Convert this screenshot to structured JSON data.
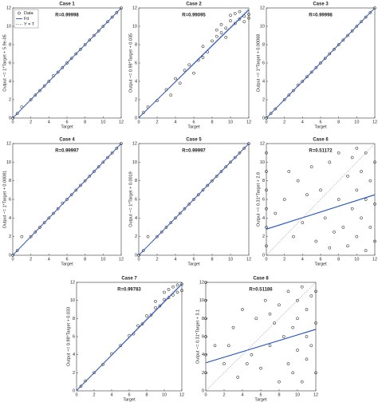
{
  "chart_data": [
    {
      "type": "scatter",
      "title": "Case 1",
      "subtitle": "R=0.99998",
      "xlabel": "Target",
      "ylabel": "Output ~= 1*Target + 5.9e-05",
      "xlim": [
        0,
        12
      ],
      "ylim": [
        0,
        12
      ],
      "xticks": [
        0,
        2,
        4,
        6,
        8,
        10,
        12
      ],
      "yticks": [
        0,
        2,
        4,
        6,
        8,
        10,
        12
      ],
      "legend": "upper left",
      "series": [
        {
          "name": "Data",
          "color": "#000000",
          "style": "markers",
          "x": [
            0,
            0.5,
            1,
            2,
            2.5,
            3,
            3.5,
            4,
            4.5,
            5,
            5.5,
            6,
            6.5,
            7,
            7.5,
            8,
            8.5,
            9,
            9.5,
            10,
            10.5,
            11,
            11.5,
            12
          ],
          "values": [
            0,
            0.5,
            1.2,
            2,
            2.5,
            3,
            3.5,
            4,
            4.6,
            5,
            5.5,
            6,
            6.5,
            7,
            7.5,
            8,
            8.5,
            9,
            9.5,
            10,
            10.5,
            11,
            11.5,
            12
          ]
        },
        {
          "name": "Fit",
          "color": "#1f4fbf",
          "style": "solid",
          "x": [
            0,
            12
          ],
          "values": [
            0,
            12
          ]
        },
        {
          "name": "Y = T",
          "color": "#999999",
          "style": "dotted",
          "x": [
            0,
            12
          ],
          "values": [
            0,
            12
          ]
        }
      ]
    },
    {
      "type": "scatter",
      "title": "Case 2",
      "subtitle": "R=0.99095",
      "xlabel": "Target",
      "ylabel": "Output ~= 0.98*Target + 0.035",
      "xlim": [
        0,
        12
      ],
      "ylim": [
        0,
        12
      ],
      "xticks": [
        0,
        2,
        4,
        6,
        8,
        10,
        12
      ],
      "yticks": [
        0,
        2,
        4,
        6,
        8,
        10,
        12
      ],
      "series": [
        {
          "color": "#000000",
          "style": "markers",
          "x": [
            0.5,
            1,
            2,
            3,
            3.5,
            4,
            4.5,
            5,
            5.5,
            6,
            6.5,
            7,
            7,
            7.5,
            8,
            8.5,
            9,
            9,
            9.5,
            10,
            10,
            10.5,
            10.5,
            11,
            11,
            11.5,
            11.5,
            12,
            12,
            9.5,
            8.5
          ],
          "values": [
            0.6,
            1.2,
            1.9,
            3.1,
            2.5,
            4.3,
            3.8,
            5.2,
            5.8,
            4.9,
            6.3,
            6.6,
            7.8,
            7.2,
            8.4,
            8.9,
            9.3,
            10.2,
            9.8,
            10.6,
            11.2,
            10.3,
            11.4,
            10.8,
            11.6,
            11.1,
            10.5,
            11.3,
            10.9,
            8.8,
            9.6
          ]
        },
        {
          "color": "#1f4fbf",
          "style": "solid",
          "x": [
            0,
            12
          ],
          "values": [
            0.035,
            11.8
          ]
        },
        {
          "color": "#999999",
          "style": "dotted",
          "x": [
            0,
            12
          ],
          "values": [
            0,
            12
          ]
        }
      ]
    },
    {
      "type": "scatter",
      "title": "Case 3",
      "subtitle": "R=0.99998",
      "xlabel": "Target",
      "ylabel": "Output ~= 1*Target + 0.00068",
      "xlim": [
        0,
        12
      ],
      "ylim": [
        0,
        12
      ],
      "xticks": [
        0,
        2,
        4,
        6,
        8,
        10,
        12
      ],
      "yticks": [
        0,
        2,
        4,
        6,
        8,
        10,
        12
      ],
      "series": [
        {
          "color": "#000000",
          "style": "markers",
          "x": [
            0,
            0.5,
            1,
            2,
            2.5,
            3,
            3.5,
            4,
            4.5,
            5,
            5.5,
            6,
            6.5,
            7,
            7.5,
            8,
            8.5,
            9,
            9.5,
            10,
            10.5,
            11,
            11.5,
            12
          ],
          "values": [
            0,
            0.5,
            1,
            2,
            2.5,
            3,
            3.6,
            4,
            4.5,
            5,
            5.5,
            6,
            6.5,
            7,
            7.5,
            8,
            8.5,
            9,
            9.5,
            10,
            10.5,
            11,
            11.5,
            12
          ]
        },
        {
          "color": "#1f4fbf",
          "style": "solid",
          "x": [
            0,
            12
          ],
          "values": [
            0,
            12
          ]
        },
        {
          "color": "#999999",
          "style": "dotted",
          "x": [
            0,
            12
          ],
          "values": [
            0,
            12
          ]
        }
      ]
    },
    {
      "type": "scatter",
      "title": "Case 4",
      "subtitle": "R=0.99997",
      "xlabel": "Target",
      "ylabel": "Output ~= 1*Target + 0.00081",
      "xlim": [
        0,
        12
      ],
      "ylim": [
        0,
        12
      ],
      "xticks": [
        0,
        2,
        4,
        6,
        8,
        10,
        12
      ],
      "yticks": [
        0,
        2,
        4,
        6,
        8,
        10,
        12
      ],
      "series": [
        {
          "color": "#000000",
          "style": "markers",
          "x": [
            0,
            0.5,
            1,
            2,
            2.5,
            3,
            3.5,
            4,
            4.5,
            5,
            5.5,
            6,
            6.5,
            7,
            7.5,
            8,
            8.5,
            9,
            9.5,
            10,
            10.5,
            11,
            11.5,
            12
          ],
          "values": [
            0,
            0.5,
            2,
            2,
            2.5,
            3,
            3.5,
            4,
            4.5,
            5,
            5.6,
            6,
            6.5,
            7,
            7.5,
            8,
            8.5,
            9,
            9.5,
            10,
            10.5,
            11,
            11.5,
            12
          ]
        },
        {
          "color": "#1f4fbf",
          "style": "solid",
          "x": [
            0,
            12
          ],
          "values": [
            0,
            12
          ]
        },
        {
          "color": "#999999",
          "style": "dotted",
          "x": [
            0,
            12
          ],
          "values": [
            0,
            12
          ]
        }
      ]
    },
    {
      "type": "scatter",
      "title": "Case 5",
      "subtitle": "R=0.99997",
      "xlabel": "Target",
      "ylabel": "Output ~= 1*Target + 0.0019",
      "xlim": [
        0,
        12
      ],
      "ylim": [
        0,
        12
      ],
      "xticks": [
        0,
        2,
        4,
        6,
        8,
        10,
        12
      ],
      "yticks": [
        0,
        2,
        4,
        6,
        8,
        10,
        12
      ],
      "series": [
        {
          "color": "#000000",
          "style": "markers",
          "x": [
            0,
            0.5,
            1,
            2,
            2.5,
            3,
            3.5,
            4,
            4.5,
            5,
            5.5,
            6,
            6.5,
            7,
            7.5,
            8,
            8.5,
            9,
            9.5,
            10,
            10.5,
            11,
            11.5,
            12
          ],
          "values": [
            0,
            0.5,
            2,
            2,
            2.5,
            3,
            3.5,
            4,
            4.5,
            5,
            5.5,
            6,
            6.5,
            7,
            7.5,
            8,
            8.5,
            9,
            9.5,
            10,
            10.5,
            11,
            11.5,
            12
          ]
        },
        {
          "color": "#1f4fbf",
          "style": "solid",
          "x": [
            0,
            12
          ],
          "values": [
            0,
            12
          ]
        },
        {
          "color": "#999999",
          "style": "dotted",
          "x": [
            0,
            12
          ],
          "values": [
            0,
            12
          ]
        }
      ]
    },
    {
      "type": "scatter",
      "title": "Case 6",
      "subtitle": "R=0.51172",
      "xlabel": "Target",
      "ylabel": "Output ~= 0.31*Target + 2.8",
      "xlim": [
        0,
        12
      ],
      "ylim": [
        0,
        12
      ],
      "xticks": [
        0,
        2,
        4,
        6,
        8,
        10,
        12
      ],
      "yticks": [
        0,
        2,
        4,
        6,
        8,
        10,
        12
      ],
      "series": [
        {
          "color": "#000000",
          "style": "markers",
          "x": [
            0,
            0,
            0,
            0,
            0,
            0,
            1,
            2,
            3,
            3.5,
            4,
            5,
            5.5,
            6,
            6.5,
            7,
            7.5,
            8,
            8,
            8.5,
            9,
            9,
            9.5,
            9.5,
            10,
            10,
            10,
            10.5,
            10.5,
            11,
            11,
            11,
            11.5,
            11.5,
            12,
            12,
            12,
            4.5,
            2.5,
            7
          ],
          "values": [
            1,
            3,
            5,
            7,
            9,
            11,
            4.5,
            6,
            2,
            8,
            3.5,
            9.5,
            1.5,
            7,
            4,
            10,
            2.5,
            6,
            11,
            3,
            8.5,
            1,
            5,
            10.5,
            2,
            7,
            11.5,
            4,
            9,
            0.5,
            6,
            11,
            3,
            8,
            1.5,
            10,
            5.5,
            6.5,
            9,
            0.8
          ]
        },
        {
          "color": "#1f4fbf",
          "style": "solid",
          "x": [
            0,
            12
          ],
          "values": [
            2.8,
            6.5
          ]
        },
        {
          "color": "#999999",
          "style": "dotted",
          "x": [
            0,
            12
          ],
          "values": [
            0,
            12
          ]
        }
      ]
    },
    {
      "type": "scatter",
      "title": "Case 7",
      "subtitle": "R=0.99783",
      "xlabel": "Target",
      "ylabel": "Output ~= 0.98*Target + 0.033",
      "xlim": [
        0,
        12
      ],
      "ylim": [
        0,
        12
      ],
      "xticks": [
        0,
        2,
        4,
        6,
        8,
        10,
        12
      ],
      "yticks": [
        0,
        2,
        4,
        6,
        8,
        10,
        12
      ],
      "series": [
        {
          "color": "#000000",
          "style": "markers",
          "x": [
            0.5,
            1,
            2,
            3,
            4,
            5,
            6,
            6.5,
            7,
            7.5,
            8,
            8.5,
            9,
            9,
            9.5,
            10,
            10,
            10.5,
            10.5,
            11,
            11,
            11.5,
            11.5,
            12,
            12
          ],
          "values": [
            0.5,
            1.1,
            2,
            2.9,
            4.1,
            5,
            6.1,
            6.3,
            7.2,
            7.4,
            8.3,
            8.4,
            9.2,
            9.9,
            9.4,
            10.1,
            10.9,
            10.3,
            11.2,
            10.6,
            11.5,
            10.9,
            11.7,
            11.1,
            11.8
          ]
        },
        {
          "color": "#1f4fbf",
          "style": "solid",
          "x": [
            0,
            12
          ],
          "values": [
            0.033,
            11.8
          ]
        },
        {
          "color": "#999999",
          "style": "dotted",
          "x": [
            0,
            12
          ],
          "values": [
            0,
            12
          ]
        }
      ]
    },
    {
      "type": "scatter",
      "title": "Case 8",
      "subtitle": "R=0.51186",
      "xlabel": "Target",
      "ylabel": "Output ~= 0.31*Target + 3.1",
      "xlim": [
        0,
        12
      ],
      "ylim": [
        0,
        12
      ],
      "xticks": [
        0,
        2,
        4,
        6,
        8,
        10,
        12
      ],
      "yticks": [
        0,
        2,
        4,
        6,
        8,
        10,
        12
      ],
      "series": [
        {
          "color": "#000000",
          "style": "markers",
          "x": [
            0,
            0,
            0,
            0,
            0,
            0,
            1,
            2,
            3,
            3.5,
            4,
            5,
            5.5,
            6,
            6.5,
            7,
            7.5,
            8,
            8,
            8.5,
            9,
            9,
            9.5,
            9.5,
            10,
            10,
            10,
            10.5,
            10.5,
            11,
            11,
            11,
            11.5,
            11.5,
            12,
            12,
            12,
            4.5,
            2.5,
            7
          ],
          "values": [
            2,
            4,
            6,
            8,
            10,
            12,
            5,
            3,
            7,
            1.5,
            9,
            4,
            8,
            2.5,
            10,
            5,
            7.5,
            1,
            9.5,
            6,
            3,
            11,
            7,
            2,
            10,
            4.5,
            8,
            1,
            11.5,
            6,
            3.5,
            9,
            5,
            10.5,
            2,
            7.5,
            11,
            3,
            5,
            8.5
          ]
        },
        {
          "color": "#1f4fbf",
          "style": "solid",
          "x": [
            0,
            12
          ],
          "values": [
            3.1,
            6.8
          ]
        },
        {
          "color": "#999999",
          "style": "dotted",
          "x": [
            0,
            12
          ],
          "values": [
            0,
            12
          ]
        }
      ]
    }
  ]
}
